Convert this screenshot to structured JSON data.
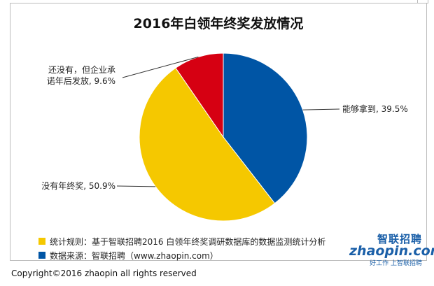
{
  "title": "2016年白领年终奖发放情况",
  "chart_data": {
    "type": "pie",
    "title": "2016年白领年终奖发放情况",
    "slices": [
      {
        "label": "能够拿到, 39.5%",
        "value": 39.5,
        "color": "#0055a5"
      },
      {
        "label": "没有年终奖, 50.9%",
        "value": 50.9,
        "color": "#f5c800"
      },
      {
        "label": "还没有，但企业承诺年后发放, 9.6%",
        "value": 9.6,
        "color": "#d60012"
      }
    ],
    "labels_text": {
      "slice_0": "能够拿到, 39.5%",
      "slice_1": "没有年终奖, 50.9%",
      "slice_2_line1": "还没有，但企业承",
      "slice_2_line2": "诺年后发放, 9.6%"
    }
  },
  "notes": {
    "rule": "统计规则：基于智联招聘2016 白领年终奖调研数据库的数据监测统计分析",
    "rule_color": "#f5c800",
    "source": "数据来源：智联招聘（www.zhaopin.com）",
    "source_color": "#0055a5"
  },
  "logo": {
    "cn": "智联招聘",
    "en": "zhaopin.com",
    "slogan": "好工作 上智联招聘"
  },
  "copyright": "Copyright©2016 zhaopin all rights reserved"
}
